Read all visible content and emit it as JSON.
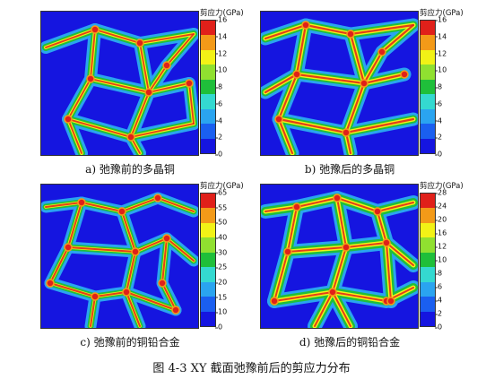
{
  "figure_caption": "图 4-3 XY 截面弛豫前后的剪应力分布",
  "colors": [
    "#1515e0",
    "#2aa4f0",
    "#34d9d0",
    "#1fbf3a",
    "#90e030",
    "#f2f216",
    "#f39a18",
    "#e0201a"
  ],
  "panels": [
    {
      "caption": "a)  弛豫前的多晶铜",
      "colorbar_label": "剪应力(GPa)",
      "ticks": [
        "16",
        "14",
        "12",
        "10",
        "8",
        "6",
        "4",
        "2",
        "0"
      ]
    },
    {
      "caption": "b)  弛豫后的多晶铜",
      "colorbar_label": "剪应力(GPa)",
      "ticks": [
        "16",
        "14",
        "12",
        "10",
        "8",
        "6",
        "4",
        "2",
        "0"
      ]
    },
    {
      "caption": "c)  弛豫前的铜铅合金",
      "colorbar_label": "剪应力(GPa)",
      "ticks": [
        "65",
        "55",
        "50",
        "40",
        "30",
        "25",
        "20",
        "15",
        "10",
        "0"
      ]
    },
    {
      "caption": "d)  弛豫后的铜铅合金",
      "colorbar_label": "剪应力(GPa)",
      "ticks": [
        "28",
        "24",
        "20",
        "16",
        "12",
        "10",
        "8",
        "6",
        "4",
        "2",
        "0"
      ]
    }
  ]
}
